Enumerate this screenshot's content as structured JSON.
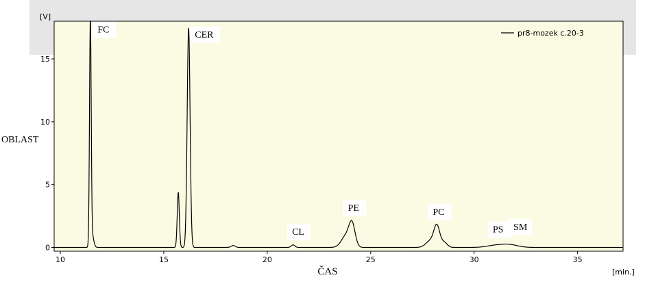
{
  "chart_data": {
    "type": "line",
    "y_unit": "[V]",
    "x_unit": "[min.]",
    "xlabel": "ČAS",
    "ylabel": "OBLAST",
    "xlim": [
      9.7,
      37.2
    ],
    "ylim": [
      -0.3,
      18.0
    ],
    "x_ticks": [
      10,
      15,
      20,
      25,
      30,
      35
    ],
    "y_ticks": [
      0,
      5,
      10,
      15
    ],
    "legend_position": "top-right",
    "series": [
      {
        "name": "pr8-mozek c.20-3",
        "color": "#000000",
        "baseline": 0.0,
        "peaks": [
          {
            "x": 11.45,
            "height": 18.0,
            "width": 0.04
          },
          {
            "x": 11.53,
            "height": 1.0,
            "width": 0.08
          },
          {
            "x": 15.7,
            "height": 4.4,
            "width": 0.05
          },
          {
            "x": 16.2,
            "height": 17.5,
            "width": 0.07
          },
          {
            "x": 18.35,
            "height": 0.15,
            "width": 0.1
          },
          {
            "x": 21.25,
            "height": 0.2,
            "width": 0.09
          },
          {
            "x": 23.8,
            "height": 0.9,
            "width": 0.22
          },
          {
            "x": 24.1,
            "height": 1.75,
            "width": 0.15
          },
          {
            "x": 27.9,
            "height": 0.55,
            "width": 0.22
          },
          {
            "x": 28.2,
            "height": 1.6,
            "width": 0.14
          },
          {
            "x": 28.55,
            "height": 0.4,
            "width": 0.15
          },
          {
            "x": 31.0,
            "height": 0.15,
            "width": 0.4
          },
          {
            "x": 31.7,
            "height": 0.22,
            "width": 0.4
          }
        ]
      }
    ],
    "annotations": [
      {
        "text": "FC",
        "x": 11.8,
        "y": 17.1
      },
      {
        "text": "CER",
        "x": 16.5,
        "y": 16.7
      },
      {
        "text": "CL",
        "x": 21.2,
        "y": 1.0
      },
      {
        "text": "PE",
        "x": 23.9,
        "y": 2.9
      },
      {
        "text": "PC",
        "x": 28.0,
        "y": 2.6
      },
      {
        "text": "PS",
        "x": 30.9,
        "y": 1.2
      },
      {
        "text": "SM",
        "x": 31.9,
        "y": 1.4
      }
    ],
    "colors": {
      "plot_background": "#fbfbe3",
      "line": "#000000",
      "header_band": "#e6e6e6",
      "label_box": "#ffffff"
    }
  }
}
